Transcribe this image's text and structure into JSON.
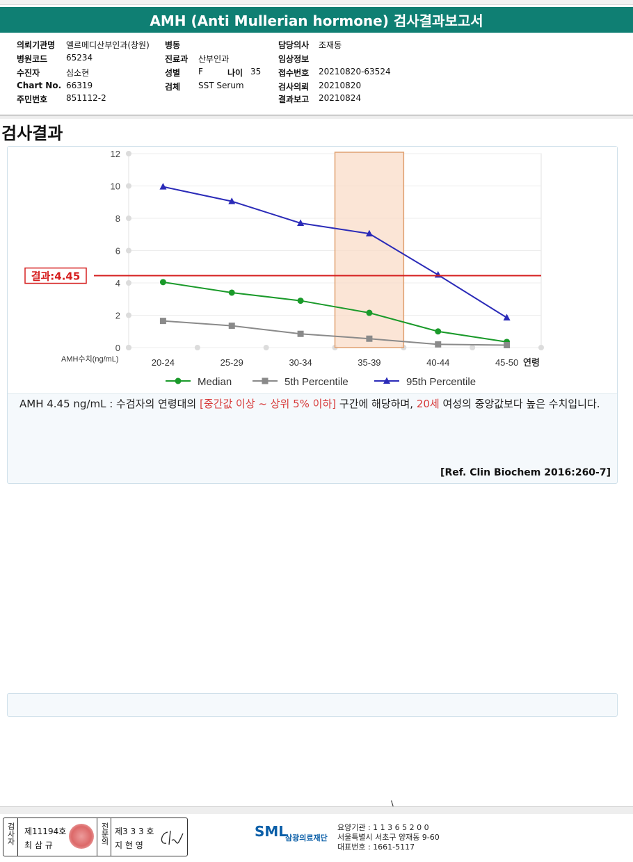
{
  "title": "AMH (Anti Mullerian hormone) 검사결과보고서",
  "patient_info": {
    "institution_label": "의뢰기관명",
    "institution": "엘르메디산부인과(창원)",
    "hospital_code_label": "병원코드",
    "hospital_code": "65234",
    "examinee_label": "수진자",
    "examinee": "심소현",
    "chart_no_label": "Chart No.",
    "chart_no": "66319",
    "resident_no_label": "주민번호",
    "resident_no": "851112-2",
    "ward_label": "병동",
    "ward": "",
    "department_label": "진료과",
    "department": "산부인과",
    "sex_label": "성별",
    "sex": "F",
    "age_label": "나이",
    "age": "35",
    "specimen_label": "검체",
    "specimen": "SST Serum",
    "doctor_label": "담당의사",
    "doctor": "조재동",
    "clinical_info_label": "임상정보",
    "clinical_info": "",
    "receipt_no_label": "접수번호",
    "receipt_no": "20210820-63524",
    "request_date_label": "검사의뢰",
    "request_date": "20210820",
    "report_date_label": "결과보고",
    "report_date": "20210824"
  },
  "section_title": "검사결과",
  "chart_data": {
    "type": "line",
    "categories": [
      "20-24",
      "25-29",
      "30-34",
      "35-39",
      "40-44",
      "45-50"
    ],
    "xlabel": "연령",
    "ylabel": "AMH수치(ng/mL)",
    "ylim": [
      0,
      12
    ],
    "yticks": [
      0,
      2,
      4,
      6,
      8,
      10,
      12
    ],
    "grid": true,
    "legend_position": "bottom",
    "highlight_band": "35-39",
    "series": [
      {
        "name": "Median",
        "values": [
          4.05,
          3.4,
          2.9,
          2.15,
          1.0,
          0.35
        ],
        "color": "#1a9a2a",
        "marker": "circle"
      },
      {
        "name": "5th Percentile",
        "values": [
          1.65,
          1.35,
          0.85,
          0.55,
          0.2,
          0.15
        ],
        "color": "#8a8a8a",
        "marker": "square"
      },
      {
        "name": "95th Percentile",
        "values": [
          9.95,
          9.05,
          7.7,
          7.05,
          4.5,
          1.85
        ],
        "color": "#2b2bb8",
        "marker": "triangle"
      }
    ],
    "result_line": {
      "label": "결과:4.45",
      "value": 4.45,
      "color": "#d62020"
    }
  },
  "interpretation": {
    "part1": "AMH  4.45 ng/mL : 수검자의 연령대의 ",
    "range": "[중간값 이상 ~ 상위 5% 이하]",
    "part2": "  구간에 해당하며, ",
    "age_ref": "20세",
    "part3": " 여성의 중앙값보다 높은 수치입니다."
  },
  "reference": "[Ref. Clin Biochem 2016:260-7]",
  "footer": {
    "inspector_label": "검사자",
    "inspector_license": "제11194호",
    "inspector_name": "최 삼 규",
    "physician_label": "전문의",
    "physician_license": "제3 3 3 호",
    "physician_name": "지 현 영",
    "footer_mark": "\\",
    "lab_logo": "SML",
    "lab_name": "삼광의료재단",
    "institution_code": "요양기관 : 1 1 3 6 5 2 0 0",
    "address": "서울특별시 서초구 양재동 9-60",
    "phone": "대표번호 : 1661-5117"
  }
}
